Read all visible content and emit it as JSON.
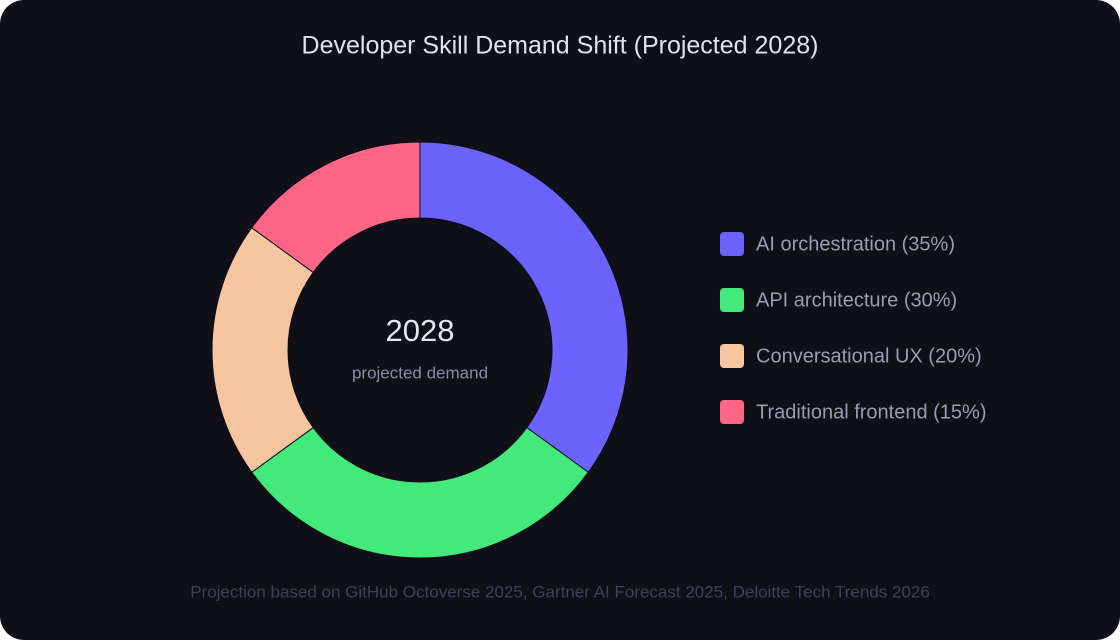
{
  "chart_data": {
    "type": "pie",
    "donut": true,
    "title": "Developer Skill Demand Shift (Projected 2028)",
    "center_label": "2028",
    "center_sublabel": "projected demand",
    "categories": [
      "AI orchestration (35%)",
      "API architecture (30%)",
      "Conversational UX (20%)",
      "Traditional frontend (15%)"
    ],
    "values": [
      35,
      30,
      20,
      15
    ],
    "colors": [
      "#6c63ff",
      "#43e97b",
      "#f7c59f",
      "#ff6584"
    ],
    "legend": "right",
    "source": "Projection based on GitHub Octoverse 2025, Gartner AI Forecast 2025, Deloitte Tech Trends 2026"
  }
}
